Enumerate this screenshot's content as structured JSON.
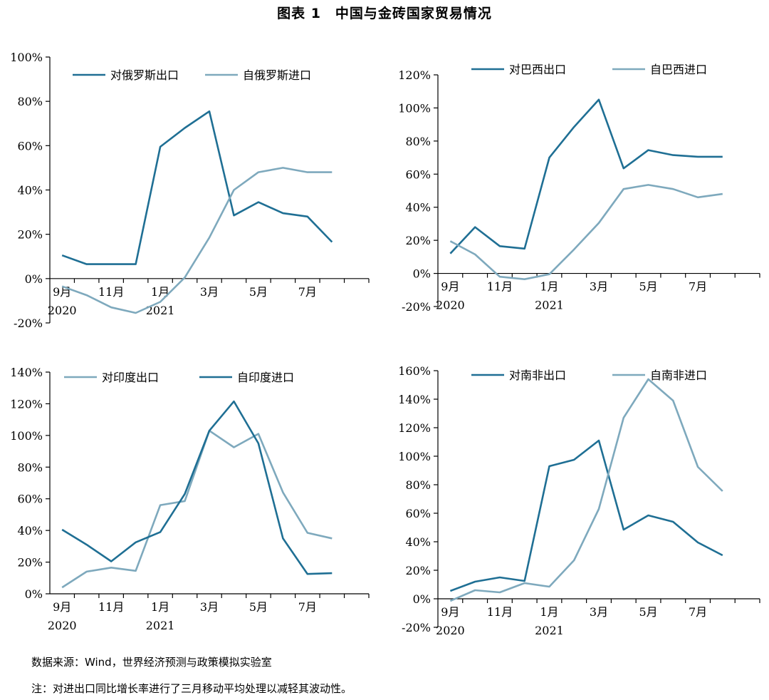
{
  "figure": {
    "title": "图表 1　中国与金砖国家贸易情况",
    "source": "数据来源：Wind，世界经济预测与政策模拟实验室",
    "note": "注：对进出口同比增长率进行了三月移动平均处理以减轻其波动性。"
  },
  "colors": {
    "dark": "#1f6f94",
    "light": "#7ea9bd",
    "axis": "#000000"
  },
  "chart_data": [
    {
      "type": "line",
      "title": "",
      "xlabel": "",
      "ylabel": "",
      "ylim": [
        -20,
        100
      ],
      "yticks": [
        -20,
        0,
        20,
        40,
        60,
        80,
        100
      ],
      "ytick_labels": [
        "-20%",
        "0%",
        "20%",
        "40%",
        "60%",
        "80%",
        "100%"
      ],
      "x": [
        "2020-09",
        "2020-10",
        "2020-11",
        "2020-12",
        "2021-01",
        "2021-02",
        "2021-03",
        "2021-04",
        "2021-05",
        "2021-06",
        "2021-07",
        "2021-08"
      ],
      "xtick_labels": [
        "9月",
        "11月",
        "1月",
        "3月",
        "5月",
        "7月"
      ],
      "year_labels": [
        "2020",
        "2021"
      ],
      "legend_position": "top",
      "series": [
        {
          "name": "对俄罗斯出口",
          "color": "dark",
          "values": [
            10.5,
            6.5,
            6.5,
            6.5,
            59.5,
            68,
            75.5,
            28.5,
            34.5,
            29.5,
            28,
            16.5
          ]
        },
        {
          "name": "自俄罗斯进口",
          "color": "light",
          "values": [
            -3.5,
            -7.5,
            -13,
            -15.5,
            -10.5,
            0.5,
            18.5,
            40,
            48,
            50,
            48,
            48
          ]
        }
      ]
    },
    {
      "type": "line",
      "title": "",
      "xlabel": "",
      "ylabel": "",
      "ylim": [
        -20,
        120
      ],
      "yticks": [
        -20,
        0,
        20,
        40,
        60,
        80,
        100,
        120
      ],
      "ytick_labels": [
        "-20%",
        "0%",
        "20%",
        "40%",
        "60%",
        "80%",
        "100%",
        "120%"
      ],
      "x": [
        "2020-09",
        "2020-10",
        "2020-11",
        "2020-12",
        "2021-01",
        "2021-02",
        "2021-03",
        "2021-04",
        "2021-05",
        "2021-06",
        "2021-07",
        "2021-08"
      ],
      "xtick_labels": [
        "9月",
        "11月",
        "1月",
        "3月",
        "5月",
        "7月"
      ],
      "year_labels": [
        "2020",
        "2021"
      ],
      "legend_position": "top",
      "series": [
        {
          "name": "对巴西出口",
          "color": "dark",
          "values": [
            12,
            28,
            16.5,
            15,
            70,
            88.5,
            105,
            63.5,
            74.5,
            71.5,
            70.5,
            70.5
          ]
        },
        {
          "name": "自巴西进口",
          "color": "light",
          "values": [
            19.5,
            11.5,
            -2,
            -3.5,
            -0.5,
            14.5,
            30.5,
            51,
            53.5,
            51,
            46,
            48
          ]
        }
      ]
    },
    {
      "type": "line",
      "title": "",
      "xlabel": "",
      "ylabel": "",
      "ylim": [
        0,
        140
      ],
      "yticks": [
        0,
        20,
        40,
        60,
        80,
        100,
        120,
        140
      ],
      "ytick_labels": [
        "0%",
        "20%",
        "40%",
        "60%",
        "80%",
        "100%",
        "120%",
        "140%"
      ],
      "x": [
        "2020-09",
        "2020-10",
        "2020-11",
        "2020-12",
        "2021-01",
        "2021-02",
        "2021-03",
        "2021-04",
        "2021-05",
        "2021-06",
        "2021-07",
        "2021-08"
      ],
      "xtick_labels": [
        "9月",
        "11月",
        "1月",
        "3月",
        "5月",
        "7月"
      ],
      "year_labels": [
        "2020",
        "2021"
      ],
      "legend_position": "top",
      "series": [
        {
          "name": "对印度出口",
          "color": "light",
          "values": [
            4,
            14,
            16.5,
            14.5,
            56,
            58.5,
            103,
            92.5,
            101,
            64,
            38.5,
            35
          ]
        },
        {
          "name": "自印度进口",
          "color": "dark",
          "values": [
            40.5,
            31,
            20.5,
            32.5,
            39,
            63,
            103,
            121.5,
            95,
            35,
            12.5,
            13
          ]
        }
      ]
    },
    {
      "type": "line",
      "title": "",
      "xlabel": "",
      "ylabel": "",
      "ylim": [
        -20,
        160
      ],
      "yticks": [
        -20,
        0,
        20,
        40,
        60,
        80,
        100,
        120,
        140,
        160
      ],
      "ytick_labels": [
        "-20%",
        "0%",
        "20%",
        "40%",
        "60%",
        "80%",
        "100%",
        "120%",
        "140%",
        "160%"
      ],
      "x": [
        "2020-09",
        "2020-10",
        "2020-11",
        "2020-12",
        "2021-01",
        "2021-02",
        "2021-03",
        "2021-04",
        "2021-05",
        "2021-06",
        "2021-07",
        "2021-08"
      ],
      "xtick_labels": [
        "9月",
        "11月",
        "1月",
        "3月",
        "5月",
        "7月"
      ],
      "year_labels": [
        "2020",
        "2021"
      ],
      "legend_position": "top",
      "series": [
        {
          "name": "对南非出口",
          "color": "dark",
          "values": [
            5.5,
            12,
            15,
            12.5,
            93,
            97.5,
            111,
            48.5,
            58.5,
            54,
            39.5,
            30.5
          ]
        },
        {
          "name": "自南非进口",
          "color": "light",
          "values": [
            -1.5,
            6,
            4.5,
            11,
            8.5,
            27,
            63,
            127,
            154,
            139,
            92.5,
            75.5
          ]
        }
      ]
    }
  ]
}
